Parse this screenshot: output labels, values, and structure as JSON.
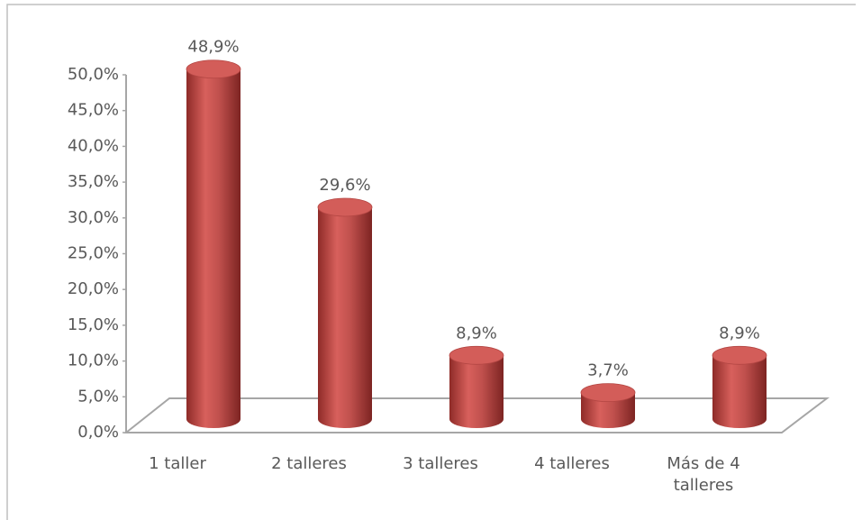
{
  "chart_data": {
    "type": "bar",
    "categories": [
      "1 taller",
      "2 talleres",
      "3 talleres",
      "4 talleres",
      "Más de 4 talleres"
    ],
    "values": [
      48.9,
      29.6,
      8.9,
      3.7,
      8.9
    ],
    "value_labels": [
      "48,9%",
      "29,6%",
      "8,9%",
      "3,7%",
      "8,9%"
    ],
    "color": "#c0504d",
    "ylim": [
      0,
      50
    ],
    "yticks": [
      {
        "value": 0,
        "label": "0,0%"
      },
      {
        "value": 5,
        "label": "5,0%"
      },
      {
        "value": 10,
        "label": "10,0%"
      },
      {
        "value": 15,
        "label": "15,0%"
      },
      {
        "value": 20,
        "label": "20,0%"
      },
      {
        "value": 25,
        "label": "25,0%"
      },
      {
        "value": 30,
        "label": "30,0%"
      },
      {
        "value": 35,
        "label": "35,0%"
      },
      {
        "value": 40,
        "label": "40,0%"
      },
      {
        "value": 45,
        "label": "45,0%"
      },
      {
        "value": 50,
        "label": "50,0%"
      }
    ],
    "grid": false
  }
}
